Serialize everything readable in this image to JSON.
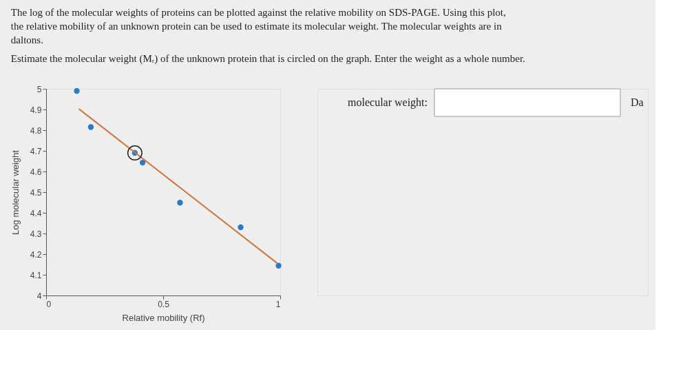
{
  "chart_data": {
    "type": "scatter",
    "title": "The log of the molecular weights of proteins can be plotted against the relative mobility on SDS-PAGE. Using this plot, the relative mobility of an unknown protein can be used to estimate its molecular weight. The molecular weights are in daltons.",
    "subtitle": "Estimate the molecular weight (Mᵣ) of the unknown protein that is circled on the graph. Enter the weight as a whole number.",
    "xlabel": "Relative mobility (Rf)",
    "ylabel": "Log molecular weight",
    "series": [
      {
        "color": "#2a7ac8",
        "marker": "circle",
        "x": [
          0.131,
          0.191,
          0.379,
          0.412,
          0.572,
          0.831,
          0.993
        ],
        "values": [
          4.99,
          4.815,
          4.69,
          4.643,
          4.449,
          4.33,
          4.144
        ]
      },
      {
        "type": "line",
        "color": "#d0743c",
        "marker": "none",
        "x": [
          0.14,
          0.986
        ],
        "values": [
          4.903,
          4.157
        ]
      },
      {
        "type": "bubble",
        "color": "#222222",
        "x": [
          0.379
        ],
        "values": [
          4.69
        ],
        "sizes": [
          1
        ]
      }
    ],
    "xlim": [
      0,
      1
    ],
    "xticks": [
      0,
      0.5,
      1
    ],
    "ylim": [
      4,
      5
    ],
    "yticks": [
      4,
      4.1,
      4.2,
      4.3,
      4.4,
      4.5,
      4.6,
      4.7,
      4.8,
      4.9,
      5
    ],
    "grid": false,
    "annotations": [
      "molecular weight:",
      "Da"
    ]
  }
}
